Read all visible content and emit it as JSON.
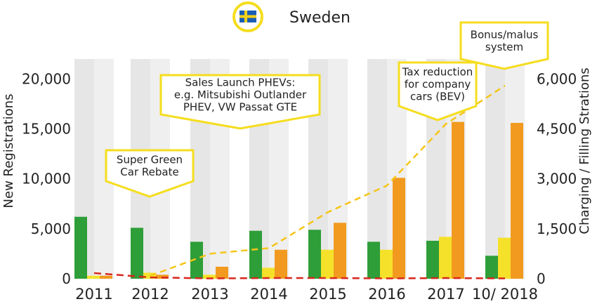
{
  "header": {
    "country": "Sweden",
    "flag_icon": "sweden-flag-icon"
  },
  "colors": {
    "bev": "#2e9e38",
    "phev": "#f5e12a",
    "third": "#f19a1f",
    "charging_line": "#f5c518",
    "red_line": "#d9261c",
    "band_a": "#e6e6e6",
    "band_b": "#efefef",
    "callout_border": "#f5dd1e"
  },
  "chart_data": {
    "type": "bar",
    "categories": [
      "2011",
      "2012",
      "2013",
      "2014",
      "2015",
      "2016",
      "2017",
      "10/ 2018"
    ],
    "ylabel": "New Registrations",
    "y2label": "Charging / Filling Strations",
    "ylim": [
      0,
      22000
    ],
    "y2lim": [
      0,
      6600
    ],
    "yticks": [
      "0",
      "5,000",
      "10,000",
      "15,000",
      "20,000"
    ],
    "y2ticks": [
      "0",
      "1,500",
      "3,000",
      "4,500",
      "6,000"
    ],
    "ytick_values": [
      0,
      5000,
      10000,
      15000,
      20000
    ],
    "y2tick_values": [
      0,
      1500,
      3000,
      4500,
      6000
    ],
    "series": [
      {
        "values": [
          6200,
          5100,
          3700,
          4800,
          4900,
          3700,
          3800,
          2300
        ]
      },
      {
        "values": [
          300,
          600,
          400,
          1100,
          2900,
          2900,
          4200,
          4100
        ]
      },
      {
        "values": [
          300,
          400,
          1200,
          2900,
          5600,
          10100,
          15700,
          15600
        ]
      }
    ],
    "lines": [
      {
        "axis": "right",
        "values": [
          null,
          90,
          750,
          920,
          2000,
          2800,
          4650,
          5800
        ]
      },
      {
        "axis": "right",
        "values": [
          170,
          40,
          10,
          20,
          20,
          10,
          20,
          10
        ]
      }
    ],
    "annotations": [
      {
        "text": [
          "Super Green",
          "Car Rebate"
        ]
      },
      {
        "text": [
          "Sales Launch PHEVs:",
          "e.g. Mitsubishi Outlander",
          "PHEV, VW Passat GTE"
        ]
      },
      {
        "text": [
          "Tax reduction",
          "for company",
          "cars (BEV)"
        ]
      },
      {
        "text": [
          "Bonus/malus",
          "system"
        ]
      }
    ]
  }
}
